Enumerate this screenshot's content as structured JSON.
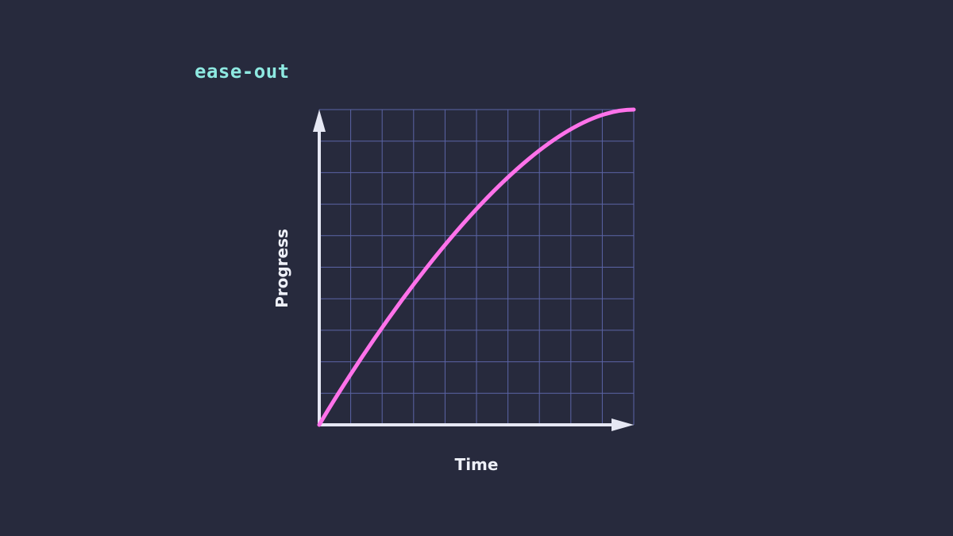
{
  "title": "ease-out",
  "chart_data": {
    "type": "line",
    "title": "ease-out",
    "xlabel": "Time",
    "ylabel": "Progress",
    "xlim": [
      0,
      1
    ],
    "ylim": [
      0,
      1
    ],
    "grid": true,
    "grid_divisions": 10,
    "curve": {
      "easing": "cubic-bezier",
      "control_points": [
        [
          0,
          0
        ],
        [
          0.58,
          1
        ]
      ]
    },
    "colors": {
      "background": "#272a3d",
      "grid": "#5b64a6",
      "axes": "#e6e8f4",
      "curve": "#ff72ea",
      "title": "#8ee9e1"
    }
  }
}
